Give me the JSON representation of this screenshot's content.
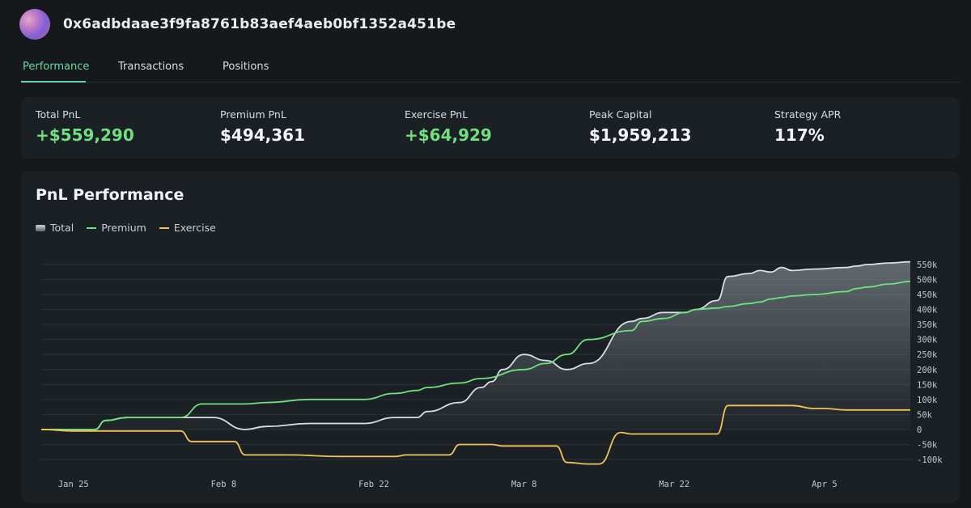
{
  "header": {
    "address": "0x6adbdaae3f9fa8761b83aef4aeb0bf1352a451be"
  },
  "tabs": [
    {
      "label": "Performance",
      "active": true
    },
    {
      "label": "Transactions",
      "active": false
    },
    {
      "label": "Positions",
      "active": false
    }
  ],
  "stats": [
    {
      "label": "Total PnL",
      "value": "+$559,290",
      "positive": true
    },
    {
      "label": "Premium PnL",
      "value": "$494,361",
      "positive": false
    },
    {
      "label": "Exercise PnL",
      "value": "+$64,929",
      "positive": true
    },
    {
      "label": "Peak Capital",
      "value": "$1,959,213",
      "positive": false
    },
    {
      "label": "Strategy APR",
      "value": "117%",
      "positive": false
    }
  ],
  "colors": {
    "accent": "#67d8a4",
    "premium": "#6ee07f",
    "exercise": "#f0c35a",
    "total": "#d9dee3",
    "positive": "#6ee07f"
  },
  "chart_data": {
    "type": "line",
    "title": "PnL Performance",
    "legend": [
      "Total",
      "Premium",
      "Exercise"
    ],
    "legend_position": "top-left",
    "grid": true,
    "x_ticks": [
      "Jan 25",
      "Feb 8",
      "Feb 22",
      "Mar 8",
      "Mar 22",
      "Apr 5"
    ],
    "x_tick_days": [
      0,
      14,
      28,
      42,
      56,
      70
    ],
    "x_range_days": [
      -3,
      78
    ],
    "y_ticks": [
      "550k",
      "500k",
      "450k",
      "400k",
      "350k",
      "300k",
      "250k",
      "200k",
      "150k",
      "100k",
      "50k",
      "0",
      "-50k",
      "-100k"
    ],
    "y_tick_values": [
      550000,
      500000,
      450000,
      400000,
      350000,
      300000,
      250000,
      200000,
      150000,
      100000,
      50000,
      0,
      -50000,
      -100000
    ],
    "ylim": [
      -100000,
      550000
    ],
    "series": [
      {
        "name": "Total",
        "style": "area",
        "x_days": [
          -3,
          2,
          3,
          5,
          10,
          13,
          16,
          18,
          22,
          27,
          30,
          31,
          32,
          33,
          36,
          38,
          39,
          40,
          42,
          44,
          46,
          48,
          52,
          53,
          55,
          57,
          58,
          60,
          61,
          63,
          64,
          65,
          66,
          67,
          69,
          72,
          73,
          74,
          76,
          78
        ],
        "values": [
          0,
          0,
          30000,
          40000,
          40000,
          40000,
          0,
          10000,
          20000,
          20000,
          40000,
          40000,
          40000,
          60000,
          90000,
          140000,
          160000,
          200000,
          250000,
          230000,
          200000,
          220000,
          360000,
          370000,
          390000,
          390000,
          400000,
          430000,
          510000,
          520000,
          530000,
          525000,
          540000,
          530000,
          535000,
          540000,
          545000,
          550000,
          555000,
          559000
        ]
      },
      {
        "name": "Premium",
        "style": "line",
        "x_days": [
          -3,
          2,
          3,
          5,
          10,
          12,
          16,
          18,
          22,
          27,
          30,
          32,
          33,
          36,
          38,
          42,
          44,
          46,
          48,
          52,
          53,
          55,
          57,
          58,
          60,
          61,
          63,
          64,
          65,
          66,
          67,
          69,
          72,
          73,
          74,
          76,
          78
        ],
        "values": [
          0,
          0,
          30000,
          40000,
          40000,
          85000,
          85000,
          90000,
          100000,
          100000,
          120000,
          130000,
          140000,
          155000,
          170000,
          200000,
          220000,
          250000,
          300000,
          330000,
          360000,
          370000,
          390000,
          400000,
          405000,
          410000,
          420000,
          425000,
          435000,
          440000,
          445000,
          450000,
          460000,
          470000,
          475000,
          485000,
          494000
        ]
      },
      {
        "name": "Exercise",
        "style": "line",
        "x_days": [
          -3,
          0,
          10,
          11,
          15,
          16,
          20,
          25,
          30,
          31,
          35,
          36,
          39,
          40,
          45,
          46,
          48,
          49,
          51,
          52,
          53,
          60,
          61,
          63,
          64,
          67,
          69,
          70,
          72,
          73,
          76,
          78
        ],
        "values": [
          0,
          -5000,
          -5000,
          -40000,
          -40000,
          -85000,
          -85000,
          -90000,
          -90000,
          -85000,
          -85000,
          -50000,
          -50000,
          -55000,
          -55000,
          -110000,
          -115000,
          -115000,
          -10000,
          -15000,
          -15000,
          -15000,
          80000,
          80000,
          80000,
          80000,
          70000,
          70000,
          65000,
          65000,
          65000,
          65000
        ]
      }
    ]
  }
}
